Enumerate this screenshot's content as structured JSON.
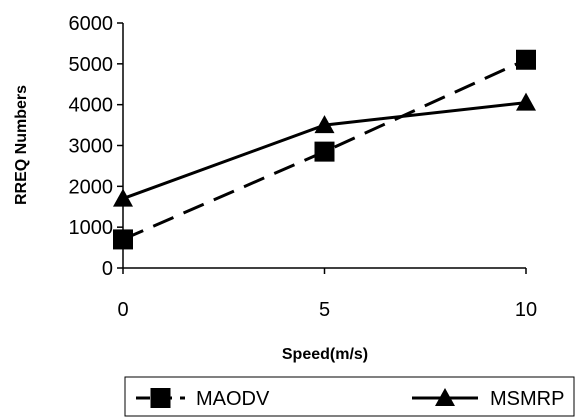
{
  "chart_data": {
    "type": "line",
    "title": "",
    "xlabel": "Speed(m/s)",
    "ylabel": "RREQ Numbers",
    "x": [
      0,
      5,
      10
    ],
    "x_ticks": [
      "0",
      "5",
      "10"
    ],
    "y_ticks": [
      "0",
      "1000",
      "2000",
      "3000",
      "4000",
      "5000",
      "6000"
    ],
    "xlim": [
      0,
      10
    ],
    "ylim": [
      0,
      6000
    ],
    "grid": false,
    "legend_position": "bottom",
    "series": [
      {
        "name": "MAODV",
        "values": [
          700,
          2850,
          5100
        ],
        "line_style": "dashed",
        "marker": "square",
        "color": "#000000"
      },
      {
        "name": "MSMRP",
        "values": [
          1700,
          3500,
          4050
        ],
        "line_style": "solid",
        "marker": "triangle",
        "color": "#000000"
      }
    ]
  }
}
